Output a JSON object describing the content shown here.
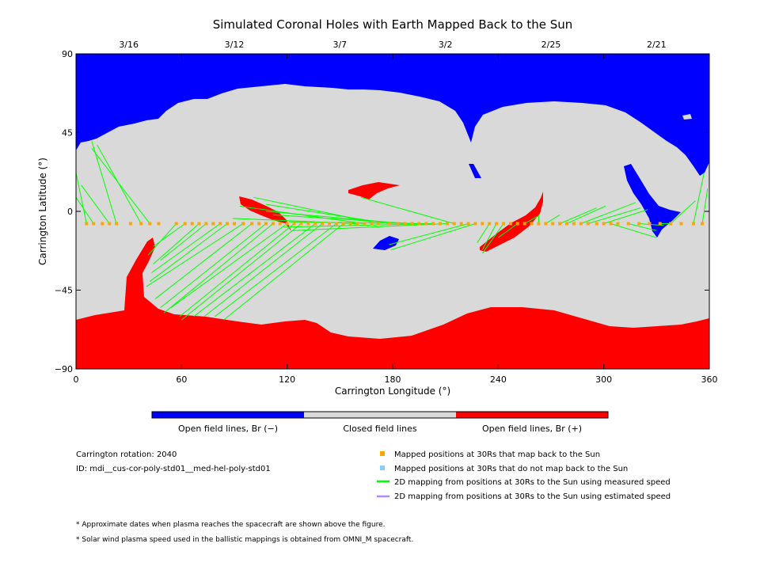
{
  "chart_data": {
    "type": "map",
    "title": "Simulated Coronal Holes with Earth Mapped Back to the Sun",
    "xlabel": "Carrington Longitude (°)",
    "ylabel": "Carrington Latitude (°)",
    "xlim": [
      0,
      360
    ],
    "ylim": [
      -90,
      90
    ],
    "x_ticks": [
      "0",
      "60",
      "120",
      "180",
      "240",
      "300",
      "360"
    ],
    "y_ticks": [
      "90",
      "45",
      "0",
      "−45",
      "−90"
    ],
    "date_ticks": [
      {
        "lon": 30,
        "label": "3/16"
      },
      {
        "lon": 90,
        "label": "3/12"
      },
      {
        "lon": 150,
        "label": "3/7"
      },
      {
        "lon": 210,
        "label": "3/2"
      },
      {
        "lon": 270,
        "label": "2/25"
      },
      {
        "lon": 330,
        "label": "2/21"
      }
    ],
    "colors": {
      "open_negative": "#0000ff",
      "closed": "#d9d9d9",
      "open_positive": "#ff0000",
      "mapped_point": "#ffa500",
      "unmapped_point": "#87cefa",
      "measured_line": "#00ff00",
      "estimated_line": "#b388ff"
    },
    "colorbar": {
      "labels": [
        "Open field lines, Br (−)",
        "Closed field lines",
        "Open field lines, Br (+)"
      ]
    },
    "spacecraft_latitude": -7,
    "mapped_positions_lon": [
      6,
      10,
      15,
      19,
      23,
      31,
      37,
      42,
      47,
      57,
      62,
      66,
      70,
      74,
      78,
      82,
      86,
      90,
      95,
      100,
      104,
      108,
      112,
      116,
      120,
      124,
      128,
      132,
      136,
      140,
      144,
      148,
      152,
      156,
      160,
      164,
      168,
      172,
      178,
      183,
      187,
      191,
      195,
      199,
      203,
      207,
      211,
      215,
      219,
      223,
      227,
      231,
      235,
      239,
      243,
      247,
      251,
      255,
      259,
      263,
      267,
      271,
      275,
      279,
      283,
      287,
      291,
      296,
      300,
      304,
      308,
      314,
      320,
      326,
      332,
      338,
      344,
      351,
      356
    ],
    "mappings": [
      [
        6,
        2
      ],
      [
        10,
        -7
      ],
      [
        15,
        -7
      ],
      [
        19,
        -7
      ],
      [
        23,
        -7
      ],
      [
        31,
        -7
      ],
      [
        37,
        -7
      ],
      [
        42,
        -7
      ],
      [
        47,
        -7
      ],
      [
        57,
        -7
      ],
      [
        62,
        -7
      ],
      [
        66,
        -7
      ],
      [
        70,
        -7
      ],
      [
        74,
        -7
      ],
      [
        78,
        -7
      ],
      [
        82,
        -7
      ],
      [
        86,
        -7
      ],
      [
        90,
        -7
      ],
      [
        95,
        -7
      ],
      [
        100,
        -7
      ],
      [
        104,
        -7
      ],
      [
        108,
        -7
      ],
      [
        112,
        -7
      ],
      [
        116,
        -7
      ],
      [
        120,
        -7
      ],
      [
        124,
        -7
      ],
      [
        128,
        -7
      ],
      [
        132,
        -7
      ],
      [
        136,
        -7
      ],
      [
        140,
        -7
      ],
      [
        144,
        -7
      ],
      [
        148,
        -7
      ],
      [
        152,
        -7
      ],
      [
        156,
        -7
      ],
      [
        160,
        -7
      ],
      [
        164,
        -7
      ],
      [
        168,
        -7
      ],
      [
        172,
        -7
      ],
      [
        178,
        -7
      ],
      [
        183,
        -7
      ],
      [
        187,
        -7
      ],
      [
        191,
        -7
      ],
      [
        195,
        -7
      ],
      [
        199,
        -7
      ],
      [
        203,
        -7
      ],
      [
        207,
        -7
      ],
      [
        211,
        -7
      ],
      [
        215,
        -7
      ],
      [
        219,
        -7
      ],
      [
        223,
        -7
      ],
      [
        227,
        -7
      ],
      [
        231,
        -7
      ],
      [
        235,
        -7
      ],
      [
        239,
        -7
      ],
      [
        243,
        -7
      ],
      [
        247,
        -7
      ],
      [
        251,
        -7
      ],
      [
        255,
        -7
      ],
      [
        259,
        -7
      ],
      [
        263,
        -7
      ],
      [
        267,
        -7
      ],
      [
        271,
        -7
      ],
      [
        275,
        -7
      ],
      [
        279,
        -7
      ],
      [
        283,
        -7
      ],
      [
        287,
        -7
      ],
      [
        291,
        -7
      ],
      [
        296,
        -7
      ],
      [
        300,
        -7
      ],
      [
        304,
        -7
      ],
      [
        308,
        -7
      ],
      [
        314,
        -7
      ],
      [
        320,
        -7
      ],
      [
        326,
        -7
      ],
      [
        332,
        -7
      ],
      [
        338,
        -7
      ],
      [
        344,
        -7
      ],
      [
        351,
        -7
      ],
      [
        356,
        -7
      ]
    ],
    "footpoints": [
      [
        0,
        22
      ],
      [
        0,
        8
      ],
      [
        3,
        15
      ],
      [
        9,
        40
      ],
      [
        12,
        38
      ],
      [
        9,
        36
      ],
      [
        41,
        -25
      ],
      [
        44,
        -20
      ],
      [
        44,
        -30
      ],
      [
        48,
        -28
      ],
      [
        43,
        -35
      ],
      [
        42,
        -40
      ],
      [
        40,
        -43
      ],
      [
        45,
        -50
      ],
      [
        48,
        -55
      ],
      [
        50,
        -58
      ],
      [
        54,
        -55
      ],
      [
        59,
        -60
      ],
      [
        60,
        -62
      ],
      [
        67,
        -60
      ],
      [
        73,
        -60
      ],
      [
        79,
        -60
      ],
      [
        84,
        -62
      ],
      [
        89,
        -4
      ],
      [
        93,
        3
      ],
      [
        101,
        8
      ],
      [
        108,
        4
      ],
      [
        108,
        0
      ],
      [
        112,
        -2
      ],
      [
        121,
        -6
      ],
      [
        118,
        -9
      ],
      [
        123,
        -11
      ],
      [
        162,
        8
      ],
      [
        178,
        -19
      ],
      [
        179,
        -22
      ],
      [
        228,
        -18
      ],
      [
        231,
        -22
      ],
      [
        231,
        -24
      ],
      [
        240,
        -15
      ],
      [
        262,
        -3
      ],
      [
        263,
        -2
      ],
      [
        275,
        -2
      ],
      [
        296,
        2
      ],
      [
        301,
        3
      ],
      [
        318,
        5
      ],
      [
        321,
        2
      ],
      [
        325,
        1
      ],
      [
        330,
        -15
      ],
      [
        330,
        -11
      ],
      [
        334,
        -8
      ],
      [
        338,
        -7
      ],
      [
        352,
        6
      ],
      [
        357,
        22
      ],
      [
        359,
        13
      ]
    ],
    "legend": [
      {
        "marker": "square",
        "color": "#ffa500",
        "label": "Mapped positions at 30Rs that map back to the Sun"
      },
      {
        "marker": "square",
        "color": "#87cefa",
        "label": "Mapped positions at 30Rs that do not map back to the Sun"
      },
      {
        "marker": "line",
        "color": "#00ff00",
        "label": "2D mapping from positions at 30Rs to the Sun using measured speed"
      },
      {
        "marker": "line",
        "color": "#b388ff",
        "label": "2D mapping from positions at 30Rs to the Sun using estimated speed"
      }
    ],
    "info": {
      "rotation": "Carrington rotation: 2040",
      "id": "ID: mdi__cus-cor-poly-std01__med-hel-poly-std01"
    },
    "footnotes": [
      "* Approximate dates when plasma reaches the spacecraft are shown above the figure.",
      "* Solar wind plasma speed used in the ballistic mappings is obtained from OMNI_M spacecraft."
    ]
  }
}
